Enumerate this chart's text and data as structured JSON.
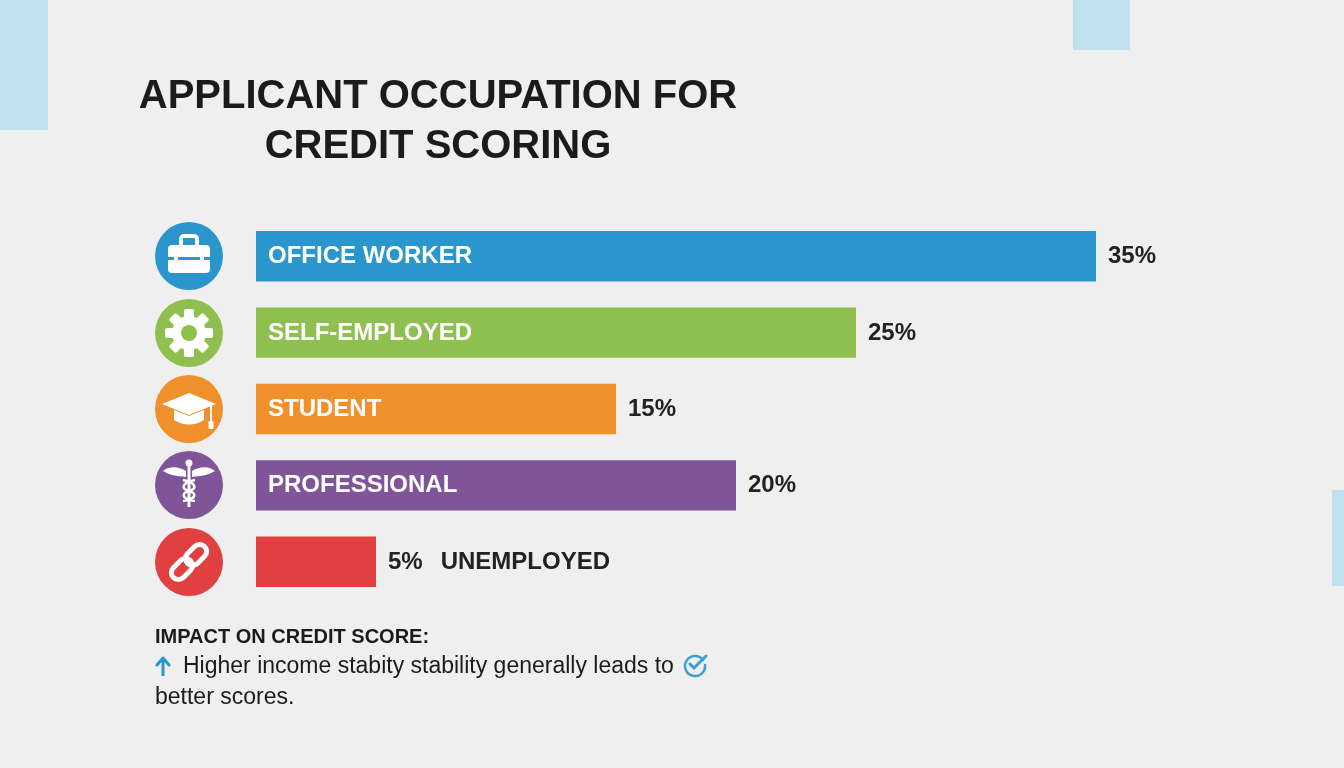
{
  "chart_data": {
    "type": "bar",
    "orientation": "horizontal",
    "title": "APPLICANT OCCUPATION FOR CREDIT SCORING",
    "categories": [
      "OFFICE WORKER",
      "SELF-EMPLOYED",
      "STUDENT",
      "PROFESSIONAL",
      "UNEMPLOYED"
    ],
    "values": [
      35,
      25,
      15,
      20,
      5
    ],
    "colors": [
      "#2b96cb",
      "#8fc04f",
      "#f0902c",
      "#7f5499",
      "#e04140"
    ],
    "value_labels": [
      "35%",
      "25%",
      "15%",
      "20%",
      "5%"
    ],
    "annotations": [
      "IMPACT ON CREDIT SCORE:",
      "Higher income stabity stability generally leads to better scores."
    ]
  }
}
